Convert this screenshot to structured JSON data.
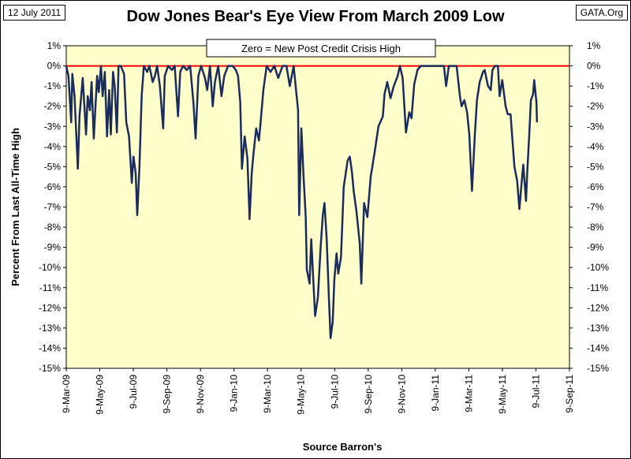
{
  "header": {
    "date": "12 July 2011",
    "source": "GATA.Org",
    "title": "Dow Jones Bear's Eye View From March 2009 Low"
  },
  "chart_data": {
    "type": "line",
    "title": "Dow Jones Bear's Eye View From March 2009 Low",
    "xlabel": "Source Barron's",
    "ylabel": "Percent From Last All-Time High",
    "annotation": "Zero = New Post Credit Crisis High",
    "ylim": [
      -15,
      1
    ],
    "xlim": [
      "2009-03-09",
      "2011-09-09"
    ],
    "y_ticks": [
      "1%",
      "0%",
      "-1%",
      "-2%",
      "-3%",
      "-4%",
      "-5%",
      "-6%",
      "-7%",
      "-8%",
      "-9%",
      "-10%",
      "-11%",
      "-12%",
      "-13%",
      "-14%",
      "-15%"
    ],
    "x_ticks": [
      "9-Mar-09",
      "9-May-09",
      "9-Jul-09",
      "9-Sep-09",
      "9-Nov-09",
      "9-Jan-10",
      "9-Mar-10",
      "9-May-10",
      "9-Jul-10",
      "9-Sep-10",
      "9-Nov-10",
      "9-Jan-11",
      "9-Mar-11",
      "9-May-11",
      "9-Jul-11",
      "9-Sep-11"
    ],
    "zero_line": {
      "y": 0,
      "color": "#ff0000"
    },
    "grid": false,
    "series": [
      {
        "color": "#1a2b5c",
        "points": [
          [
            "2009-03-09",
            0
          ],
          [
            "2009-03-13",
            -0.5
          ],
          [
            "2009-03-18",
            -2.8
          ],
          [
            "2009-03-20",
            -0.4
          ],
          [
            "2009-03-24",
            -1.5
          ],
          [
            "2009-03-30",
            -5.1
          ],
          [
            "2009-04-02",
            -2.5
          ],
          [
            "2009-04-08",
            -0.6
          ],
          [
            "2009-04-14",
            -3.4
          ],
          [
            "2009-04-17",
            -1.5
          ],
          [
            "2009-04-21",
            -2.2
          ],
          [
            "2009-04-24",
            -0.8
          ],
          [
            "2009-04-28",
            -3.6
          ],
          [
            "2009-05-04",
            -0.5
          ],
          [
            "2009-05-07",
            -1.3
          ],
          [
            "2009-05-11",
            0
          ],
          [
            "2009-05-14",
            -1.5
          ],
          [
            "2009-05-18",
            -0.3
          ],
          [
            "2009-05-22",
            -3.5
          ],
          [
            "2009-05-26",
            -1.2
          ],
          [
            "2009-05-29",
            -3.4
          ],
          [
            "2009-06-02",
            -0.3
          ],
          [
            "2009-06-05",
            -1.0
          ],
          [
            "2009-06-09",
            -3.3
          ],
          [
            "2009-06-12",
            0
          ],
          [
            "2009-06-16",
            0
          ],
          [
            "2009-06-22",
            -0.4
          ],
          [
            "2009-06-26",
            -2.8
          ],
          [
            "2009-07-01",
            -3.5
          ],
          [
            "2009-07-06",
            -5.8
          ],
          [
            "2009-07-09",
            -4.5
          ],
          [
            "2009-07-13",
            -5.3
          ],
          [
            "2009-07-16",
            -7.4
          ],
          [
            "2009-07-20",
            -5.0
          ],
          [
            "2009-07-24",
            -1.5
          ],
          [
            "2009-07-28",
            0
          ],
          [
            "2009-08-03",
            -0.3
          ],
          [
            "2009-08-07",
            0
          ],
          [
            "2009-08-13",
            -0.8
          ],
          [
            "2009-08-17",
            -0.5
          ],
          [
            "2009-08-21",
            0
          ],
          [
            "2009-08-26",
            -1.0
          ],
          [
            "2009-09-01",
            -3.1
          ],
          [
            "2009-09-04",
            -0.5
          ],
          [
            "2009-09-10",
            0
          ],
          [
            "2009-09-17",
            -0.2
          ],
          [
            "2009-09-22",
            0
          ],
          [
            "2009-09-28",
            -2.5
          ],
          [
            "2009-10-02",
            -0.3
          ],
          [
            "2009-10-07",
            0
          ],
          [
            "2009-10-14",
            -0.2
          ],
          [
            "2009-10-20",
            0
          ],
          [
            "2009-10-26",
            -1.8
          ],
          [
            "2009-10-30",
            -3.6
          ],
          [
            "2009-11-04",
            -0.5
          ],
          [
            "2009-11-09",
            0
          ],
          [
            "2009-11-16",
            -0.6
          ],
          [
            "2009-11-20",
            -1.2
          ],
          [
            "2009-11-25",
            0
          ],
          [
            "2009-11-30",
            -2.0
          ],
          [
            "2009-12-04",
            -0.8
          ],
          [
            "2009-12-10",
            0
          ],
          [
            "2009-12-16",
            -1.5
          ],
          [
            "2009-12-21",
            -0.5
          ],
          [
            "2009-12-28",
            0
          ],
          [
            "2010-01-05",
            0
          ],
          [
            "2010-01-11",
            -0.2
          ],
          [
            "2010-01-15",
            -0.5
          ],
          [
            "2010-01-19",
            -1.8
          ],
          [
            "2010-01-22",
            -5.1
          ],
          [
            "2010-01-27",
            -3.5
          ],
          [
            "2010-02-01",
            -4.6
          ],
          [
            "2010-02-05",
            -7.6
          ],
          [
            "2010-02-09",
            -5.3
          ],
          [
            "2010-02-12",
            -4.4
          ],
          [
            "2010-02-17",
            -3.1
          ],
          [
            "2010-02-22",
            -3.7
          ],
          [
            "2010-02-25",
            -2.8
          ],
          [
            "2010-03-02",
            -1.2
          ],
          [
            "2010-03-08",
            0
          ],
          [
            "2010-03-15",
            -0.3
          ],
          [
            "2010-03-22",
            0
          ],
          [
            "2010-03-29",
            -0.6
          ],
          [
            "2010-04-06",
            0
          ],
          [
            "2010-04-13",
            0
          ],
          [
            "2010-04-19",
            -1.0
          ],
          [
            "2010-04-26",
            0
          ],
          [
            "2010-05-04",
            -2.2
          ],
          [
            "2010-05-06",
            -7.4
          ],
          [
            "2010-05-10",
            -3.1
          ],
          [
            "2010-05-14",
            -5.5
          ],
          [
            "2010-05-18",
            -7.5
          ],
          [
            "2010-05-20",
            -10.1
          ],
          [
            "2010-05-25",
            -10.8
          ],
          [
            "2010-05-28",
            -8.6
          ],
          [
            "2010-06-04",
            -12.4
          ],
          [
            "2010-06-09",
            -11.5
          ],
          [
            "2010-06-14",
            -9.0
          ],
          [
            "2010-06-18",
            -7.4
          ],
          [
            "2010-06-21",
            -6.8
          ],
          [
            "2010-06-25",
            -8.6
          ],
          [
            "2010-06-29",
            -11.5
          ],
          [
            "2010-07-02",
            -13.5
          ],
          [
            "2010-07-06",
            -12.7
          ],
          [
            "2010-07-09",
            -10.6
          ],
          [
            "2010-07-13",
            -9.3
          ],
          [
            "2010-07-16",
            -10.3
          ],
          [
            "2010-07-21",
            -9.5
          ],
          [
            "2010-07-26",
            -6.0
          ],
          [
            "2010-08-02",
            -4.7
          ],
          [
            "2010-08-06",
            -4.5
          ],
          [
            "2010-08-10",
            -5.3
          ],
          [
            "2010-08-13",
            -6.2
          ],
          [
            "2010-08-18",
            -7.2
          ],
          [
            "2010-08-24",
            -8.8
          ],
          [
            "2010-08-27",
            -10.8
          ],
          [
            "2010-09-01",
            -6.8
          ],
          [
            "2010-09-07",
            -7.5
          ],
          [
            "2010-09-13",
            -5.5
          ],
          [
            "2010-09-20",
            -4.3
          ],
          [
            "2010-09-27",
            -3.0
          ],
          [
            "2010-10-05",
            -2.5
          ],
          [
            "2010-10-08",
            -1.4
          ],
          [
            "2010-10-13",
            -0.8
          ],
          [
            "2010-10-19",
            -1.6
          ],
          [
            "2010-10-25",
            -1.0
          ],
          [
            "2010-11-01",
            -0.5
          ],
          [
            "2010-11-05",
            0
          ],
          [
            "2010-11-10",
            -0.6
          ],
          [
            "2010-11-16",
            -3.3
          ],
          [
            "2010-11-22",
            -2.3
          ],
          [
            "2010-11-26",
            -2.6
          ],
          [
            "2010-12-01",
            -0.9
          ],
          [
            "2010-12-07",
            -0.2
          ],
          [
            "2010-12-13",
            0
          ],
          [
            "2010-12-20",
            0
          ],
          [
            "2010-12-27",
            0
          ],
          [
            "2011-01-04",
            0
          ],
          [
            "2011-01-11",
            0
          ],
          [
            "2011-01-18",
            0
          ],
          [
            "2011-01-24",
            0
          ],
          [
            "2011-01-28",
            -1.0
          ],
          [
            "2011-02-02",
            0
          ],
          [
            "2011-02-09",
            0
          ],
          [
            "2011-02-16",
            0
          ],
          [
            "2011-02-22",
            -1.5
          ],
          [
            "2011-02-25",
            -2.0
          ],
          [
            "2011-03-02",
            -1.7
          ],
          [
            "2011-03-07",
            -2.3
          ],
          [
            "2011-03-11",
            -3.4
          ],
          [
            "2011-03-16",
            -6.2
          ],
          [
            "2011-03-21",
            -3.5
          ],
          [
            "2011-03-25",
            -1.7
          ],
          [
            "2011-03-30",
            -0.8
          ],
          [
            "2011-04-05",
            -0.3
          ],
          [
            "2011-04-08",
            -0.2
          ],
          [
            "2011-04-14",
            -1.0
          ],
          [
            "2011-04-19",
            -1.2
          ],
          [
            "2011-04-22",
            -0.2
          ],
          [
            "2011-04-27",
            0
          ],
          [
            "2011-05-02",
            0
          ],
          [
            "2011-05-05",
            -1.5
          ],
          [
            "2011-05-10",
            -0.7
          ],
          [
            "2011-05-16",
            -2.0
          ],
          [
            "2011-05-20",
            -2.4
          ],
          [
            "2011-05-25",
            -2.4
          ],
          [
            "2011-06-01",
            -5.0
          ],
          [
            "2011-06-06",
            -5.7
          ],
          [
            "2011-06-10",
            -7.1
          ],
          [
            "2011-06-14",
            -5.8
          ],
          [
            "2011-06-17",
            -4.9
          ],
          [
            "2011-06-22",
            -6.7
          ],
          [
            "2011-06-24",
            -5.4
          ],
          [
            "2011-06-28",
            -3.4
          ],
          [
            "2011-07-01",
            -1.7
          ],
          [
            "2011-07-05",
            -1.4
          ],
          [
            "2011-07-07",
            -0.7
          ],
          [
            "2011-07-11",
            -1.8
          ],
          [
            "2011-07-12",
            -2.8
          ]
        ]
      }
    ]
  }
}
